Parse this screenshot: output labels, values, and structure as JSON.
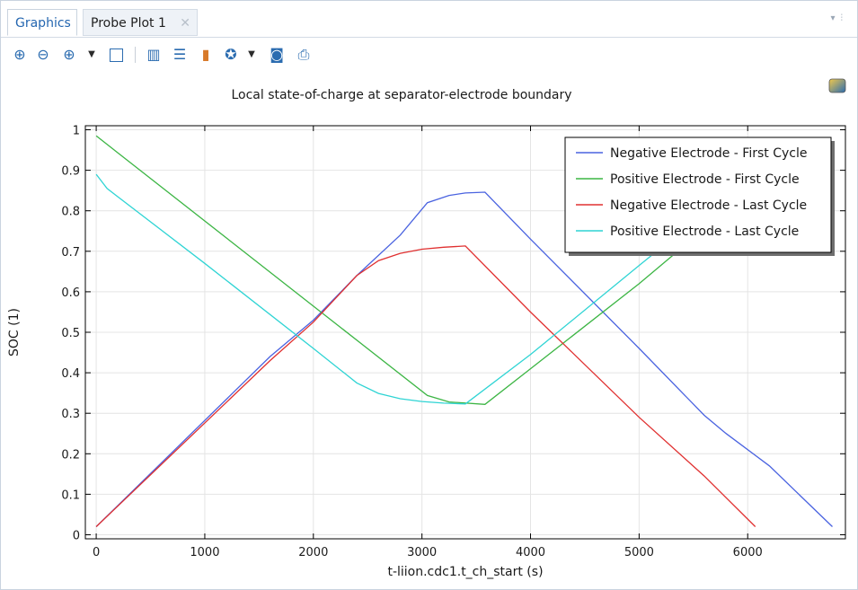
{
  "tabs": [
    {
      "label": "Graphics",
      "active": true
    },
    {
      "label": "Probe Plot 1",
      "active": false,
      "closable": true
    }
  ],
  "toolbar": {
    "icons": [
      "zoom-in-icon",
      "zoom-out-icon",
      "zoom-box-icon",
      "dropdown-arrow-icon",
      "zoom-extents-icon",
      "grid-icon",
      "table-icon",
      "legend-icon",
      "reset-icon",
      "dropdown-arrow-icon",
      "camera-icon",
      "print-icon"
    ]
  },
  "chart_data": {
    "type": "line",
    "title": "Local state-of-charge at separator-electrode boundary",
    "xlabel": "t-liion.cdc1.t_ch_start (s)",
    "ylabel": "SOC (1)",
    "xlim": [
      -100,
      6900
    ],
    "ylim": [
      -0.01,
      1.01
    ],
    "xticks": [
      0,
      1000,
      2000,
      3000,
      4000,
      5000,
      6000
    ],
    "xticklabels": [
      "0",
      "1000",
      "2000",
      "3000",
      "4000",
      "5000",
      "6000"
    ],
    "yticks": [
      0,
      0.1,
      0.2,
      0.3,
      0.4,
      0.5,
      0.6,
      0.7,
      0.8,
      0.9,
      1
    ],
    "yticklabels": [
      "0",
      "0.1",
      "0.2",
      "0.3",
      "0.4",
      "0.5",
      "0.6",
      "0.7",
      "0.8",
      "0.9",
      "1"
    ],
    "grid": true,
    "legend_position": "top-right",
    "series": [
      {
        "name": "Negative Electrode - First Cycle",
        "color": "#4a63e0",
        "x": [
          0,
          1600,
          2000,
          2400,
          2800,
          3050,
          3250,
          3400,
          3580,
          4000,
          5000,
          5600,
          5800,
          6200,
          6780
        ],
        "y": [
          0.02,
          0.44,
          0.53,
          0.64,
          0.74,
          0.82,
          0.838,
          0.844,
          0.846,
          0.73,
          0.46,
          0.295,
          0.25,
          0.17,
          0.02
        ]
      },
      {
        "name": "Positive Electrode - First Cycle",
        "color": "#3cb544",
        "x": [
          0,
          3050,
          3250,
          3580,
          4000,
          5000,
          5400
        ],
        "y": [
          0.985,
          0.344,
          0.328,
          0.322,
          0.41,
          0.62,
          0.71
        ]
      },
      {
        "name": "Negative Electrode - Last Cycle",
        "color": "#e03030",
        "x": [
          0,
          1600,
          2000,
          2400,
          2600,
          2800,
          3000,
          3200,
          3400,
          4000,
          5000,
          5600,
          6070
        ],
        "y": [
          0.02,
          0.43,
          0.525,
          0.64,
          0.677,
          0.695,
          0.705,
          0.71,
          0.713,
          0.55,
          0.29,
          0.145,
          0.02
        ]
      },
      {
        "name": "Positive Electrode - Last Cycle",
        "color": "#2fd4d4",
        "x": [
          0,
          100,
          1000,
          2000,
          2400,
          2600,
          2800,
          3000,
          3200,
          3400,
          4000,
          5000,
          5300
        ],
        "y": [
          0.89,
          0.855,
          0.67,
          0.46,
          0.375,
          0.349,
          0.336,
          0.329,
          0.325,
          0.323,
          0.445,
          0.665,
          0.73
        ]
      }
    ]
  }
}
